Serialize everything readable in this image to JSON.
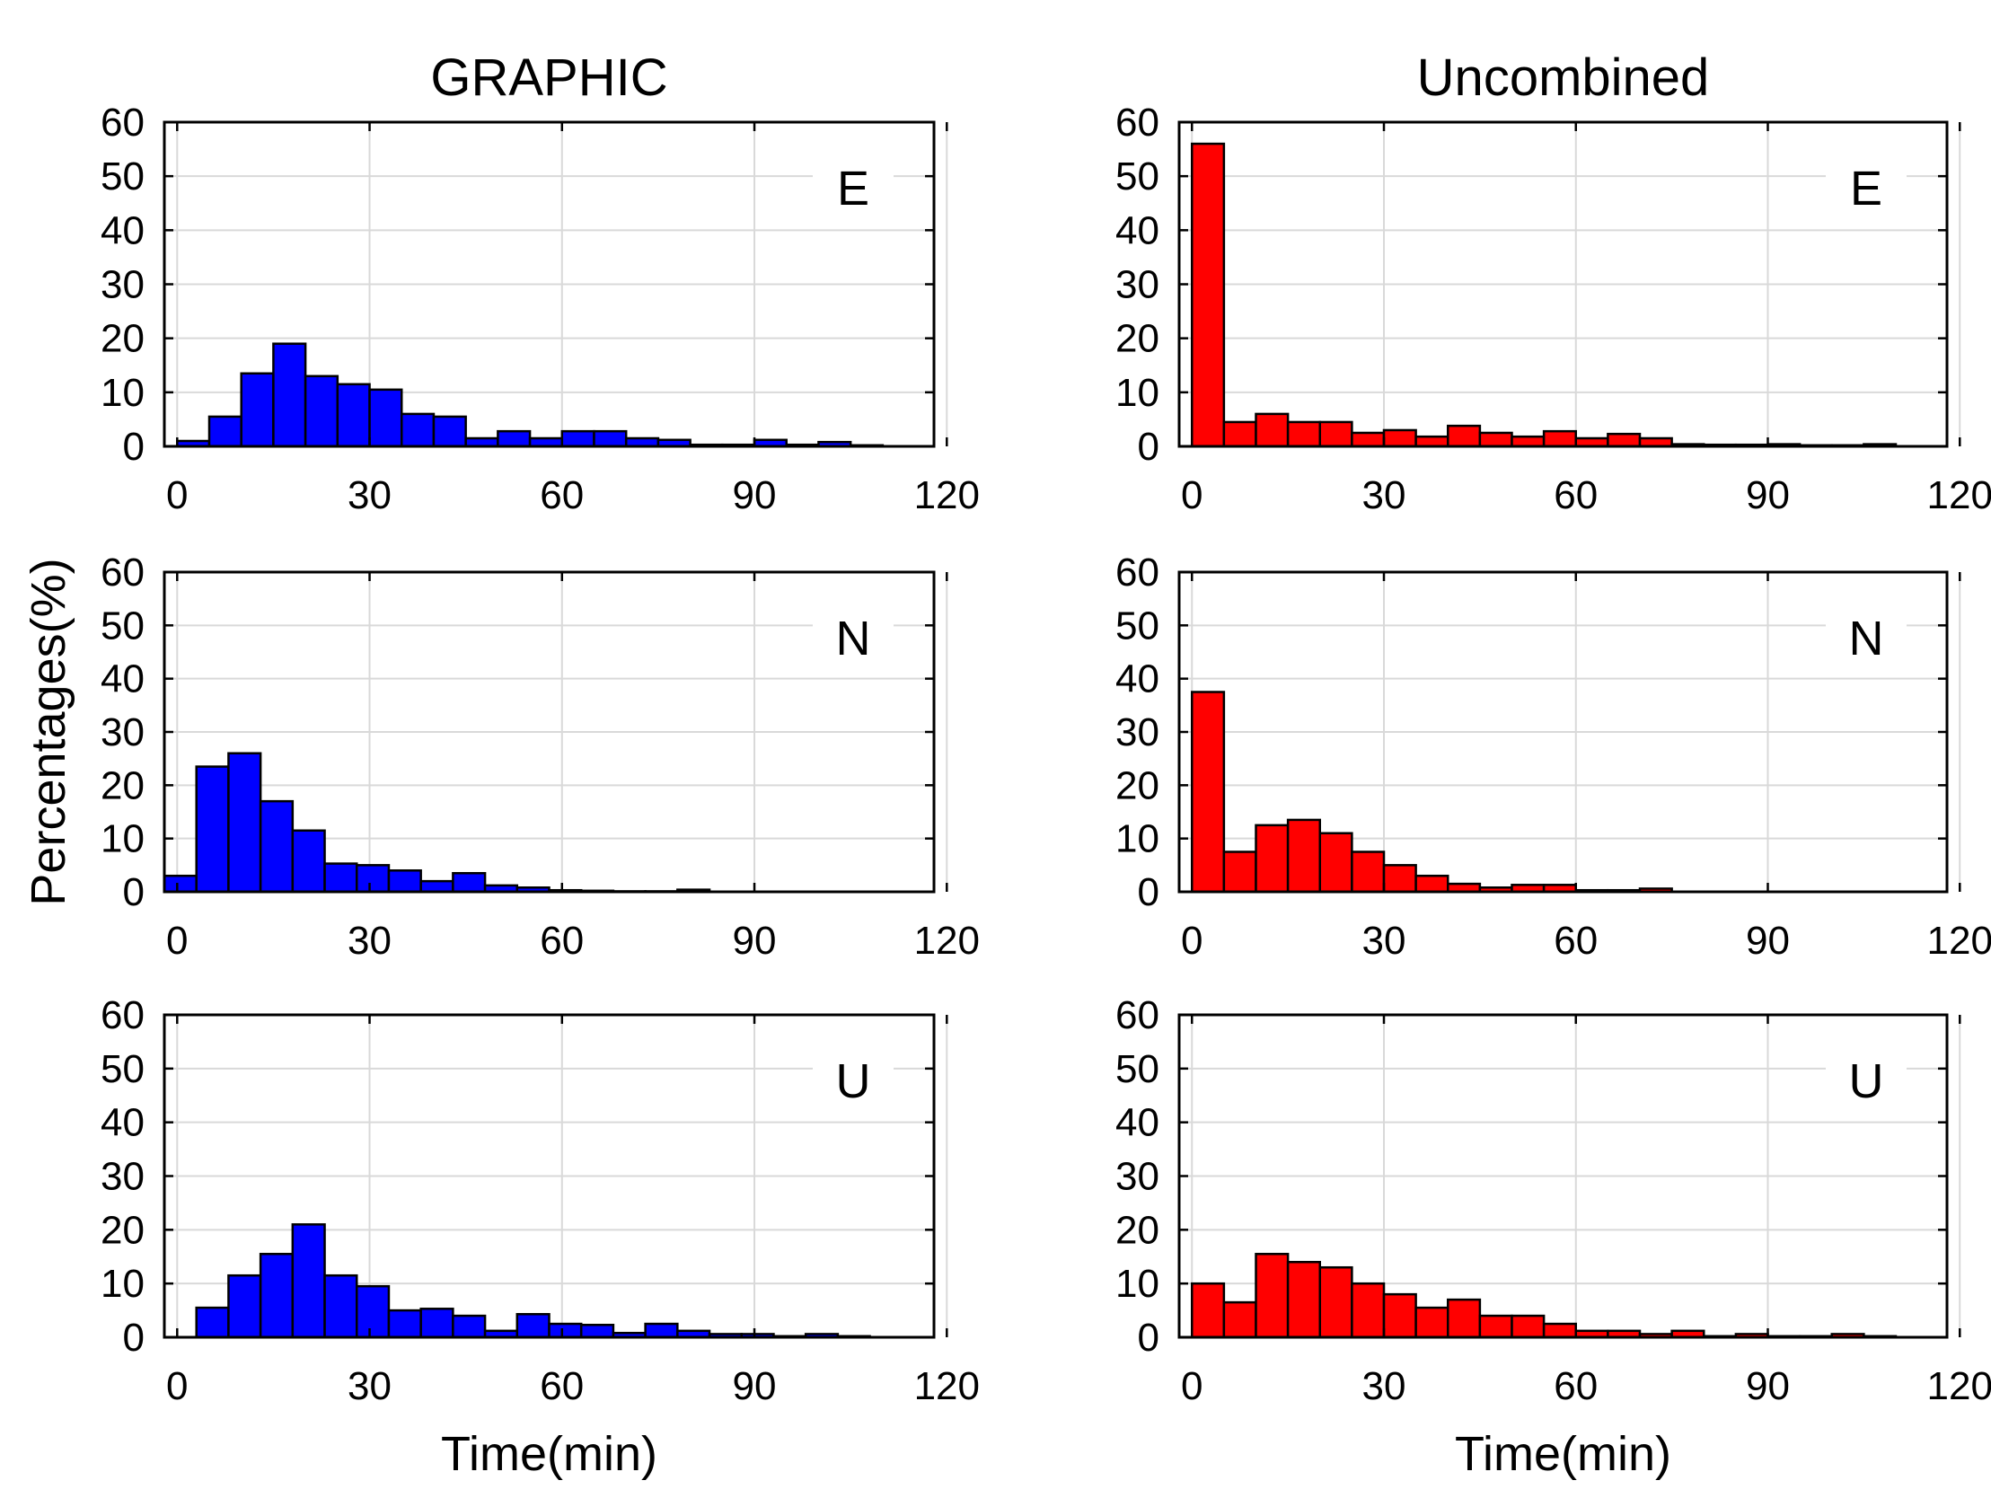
{
  "figure": {
    "y_axis_title": "Percentages(%)",
    "x_axis_title": "Time(min)"
  },
  "chart_data": [
    {
      "type": "bar",
      "name": "graphic-e",
      "column": "GRAPHIC",
      "title": "GRAPHIC",
      "panel_label": "E",
      "color": "#0000ff",
      "bin_width": 5,
      "xlim": [
        -2,
        118
      ],
      "ylim": [
        0,
        60
      ],
      "xticks": [
        0,
        30,
        60,
        90,
        120
      ],
      "yticks": [
        0,
        10,
        20,
        30,
        40,
        50,
        60
      ],
      "xlabel": "",
      "ylabel": "Percentages(%)",
      "x": [
        0,
        5,
        10,
        15,
        20,
        25,
        30,
        35,
        40,
        45,
        50,
        55,
        60,
        65,
        70,
        75,
        80,
        85,
        90,
        95,
        100,
        105
      ],
      "values": [
        1,
        5.5,
        13.5,
        19,
        13,
        11.5,
        10.5,
        6,
        5.5,
        1.5,
        2.8,
        1.5,
        2.8,
        2.8,
        1.5,
        1.2,
        0.3,
        0.3,
        1.2,
        0.3,
        0.8,
        0.2
      ]
    },
    {
      "type": "bar",
      "name": "uncombined-e",
      "column": "Uncombined",
      "title": "Uncombined",
      "panel_label": "E",
      "color": "#ff0000",
      "bin_width": 5,
      "xlim": [
        -2,
        118
      ],
      "ylim": [
        0,
        60
      ],
      "xticks": [
        0,
        30,
        60,
        90,
        120
      ],
      "yticks": [
        0,
        10,
        20,
        30,
        40,
        50,
        60
      ],
      "xlabel": "",
      "ylabel": "",
      "x": [
        0,
        5,
        10,
        15,
        20,
        25,
        30,
        35,
        40,
        45,
        50,
        55,
        60,
        65,
        70,
        75,
        80,
        85,
        90,
        95,
        100,
        105
      ],
      "values": [
        56,
        4.5,
        6,
        4.5,
        4.5,
        2.5,
        3,
        1.8,
        3.8,
        2.5,
        1.8,
        2.8,
        1.5,
        2.3,
        1.5,
        0.4,
        0.3,
        0.3,
        0.4,
        0.2,
        0.2,
        0.4
      ]
    },
    {
      "type": "bar",
      "name": "graphic-n",
      "column": "GRAPHIC",
      "title": "",
      "panel_label": "N",
      "color": "#0000ff",
      "bin_width": 5,
      "xlim": [
        -2,
        118
      ],
      "ylim": [
        0,
        60
      ],
      "xticks": [
        0,
        30,
        60,
        90,
        120
      ],
      "yticks": [
        0,
        10,
        20,
        30,
        40,
        50,
        60
      ],
      "xlabel": "",
      "ylabel": "Percentages(%)",
      "x": [
        -2,
        3,
        8,
        13,
        18,
        23,
        28,
        33,
        38,
        43,
        48,
        53,
        58,
        63,
        68,
        73,
        78
      ],
      "values": [
        3,
        23.5,
        26,
        17,
        11.5,
        5.3,
        5,
        4,
        2,
        3.5,
        1.2,
        0.8,
        0.3,
        0.2,
        0.1,
        0.1,
        0.4
      ]
    },
    {
      "type": "bar",
      "name": "uncombined-n",
      "column": "Uncombined",
      "title": "",
      "panel_label": "N",
      "color": "#ff0000",
      "bin_width": 5,
      "xlim": [
        -2,
        118
      ],
      "ylim": [
        0,
        60
      ],
      "xticks": [
        0,
        30,
        60,
        90,
        120
      ],
      "yticks": [
        0,
        10,
        20,
        30,
        40,
        50,
        60
      ],
      "xlabel": "",
      "ylabel": "",
      "x": [
        0,
        5,
        10,
        15,
        20,
        25,
        30,
        35,
        40,
        45,
        50,
        55,
        60,
        65,
        70
      ],
      "values": [
        37.5,
        7.5,
        12.5,
        13.5,
        11,
        7.5,
        5,
        3,
        1.5,
        0.8,
        1.3,
        1.3,
        0.3,
        0.3,
        0.6
      ]
    },
    {
      "type": "bar",
      "name": "graphic-u",
      "column": "GRAPHIC",
      "title": "",
      "panel_label": "U",
      "color": "#0000ff",
      "bin_width": 5,
      "xlim": [
        -2,
        118
      ],
      "ylim": [
        0,
        60
      ],
      "xticks": [
        0,
        30,
        60,
        90,
        120
      ],
      "yticks": [
        0,
        10,
        20,
        30,
        40,
        50,
        60
      ],
      "xlabel": "Time(min)",
      "ylabel": "Percentages(%)",
      "x": [
        3,
        8,
        13,
        18,
        23,
        28,
        33,
        38,
        43,
        48,
        53,
        58,
        63,
        68,
        73,
        78,
        83,
        88,
        93,
        98,
        103
      ],
      "values": [
        5.5,
        11.5,
        15.5,
        21,
        11.5,
        9.5,
        5,
        5.3,
        4,
        1.2,
        4.3,
        2.5,
        2.3,
        0.8,
        2.5,
        1.2,
        0.6,
        0.6,
        0.2,
        0.6,
        0.2
      ]
    },
    {
      "type": "bar",
      "name": "uncombined-u",
      "column": "Uncombined",
      "title": "",
      "panel_label": "U",
      "color": "#ff0000",
      "bin_width": 5,
      "xlim": [
        -2,
        118
      ],
      "ylim": [
        0,
        60
      ],
      "xticks": [
        0,
        30,
        60,
        90,
        120
      ],
      "yticks": [
        0,
        10,
        20,
        30,
        40,
        50,
        60
      ],
      "xlabel": "Time(min)",
      "ylabel": "",
      "x": [
        0,
        5,
        10,
        15,
        20,
        25,
        30,
        35,
        40,
        45,
        50,
        55,
        60,
        65,
        70,
        75,
        80,
        85,
        90,
        95,
        100,
        105
      ],
      "values": [
        10,
        6.5,
        15.5,
        14,
        13,
        10,
        8,
        5.5,
        7,
        4,
        4,
        2.5,
        1.2,
        1.2,
        0.6,
        1.2,
        0.2,
        0.6,
        0.2,
        0.2,
        0.6,
        0.2
      ]
    }
  ]
}
